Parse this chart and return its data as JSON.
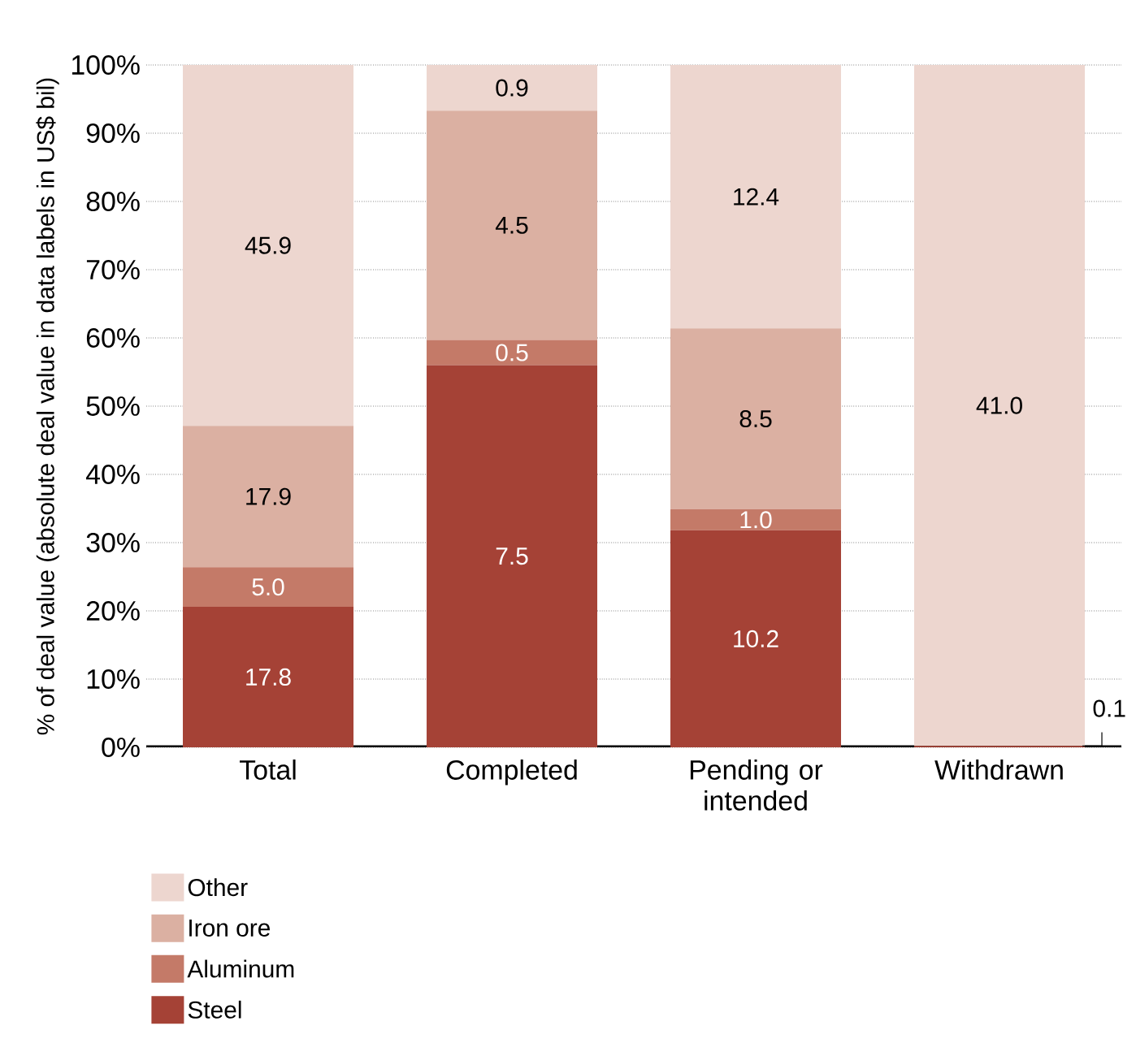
{
  "chart_data": {
    "type": "bar",
    "stacked": true,
    "categories": [
      "Total",
      "Completed",
      "Pending or intended",
      "Withdrawn"
    ],
    "ylabel": "% of deal value (absolute deal value in data labels in US$ bil)",
    "ylim": [
      0,
      100
    ],
    "yticks": [
      {
        "value": 0,
        "label": "0%"
      },
      {
        "value": 10,
        "label": "10%"
      },
      {
        "value": 20,
        "label": "20%"
      },
      {
        "value": 30,
        "label": "30%"
      },
      {
        "value": 40,
        "label": "40%"
      },
      {
        "value": 50,
        "label": "50%"
      },
      {
        "value": 60,
        "label": "60%"
      },
      {
        "value": 70,
        "label": "70%"
      },
      {
        "value": 80,
        "label": "80%"
      },
      {
        "value": 90,
        "label": "90%"
      },
      {
        "value": 100,
        "label": "100%"
      }
    ],
    "grid": "y",
    "legend": "bottom left",
    "series": [
      {
        "name": "Steel",
        "color": "#a54236",
        "values": [
          20.6,
          56.0,
          31.8,
          0.2
        ]
      },
      {
        "name": "Aluminum",
        "color": "#c47a68",
        "values": [
          5.8,
          3.7,
          3.1,
          0
        ]
      },
      {
        "name": "Iron ore",
        "color": "#dbb0a2",
        "values": [
          20.7,
          33.6,
          26.5,
          0
        ]
      },
      {
        "name": "Other",
        "color": "#edd6cf",
        "values": [
          52.9,
          6.7,
          38.6,
          99.8
        ]
      }
    ],
    "annotations": [
      "17.8",
      "5.0",
      "17.9",
      "45.9",
      "7.5",
      "0.5",
      "4.5",
      "0.9",
      "10.2",
      "1.0",
      "8.5",
      "12.4",
      "0.1",
      "41.0"
    ]
  }
}
